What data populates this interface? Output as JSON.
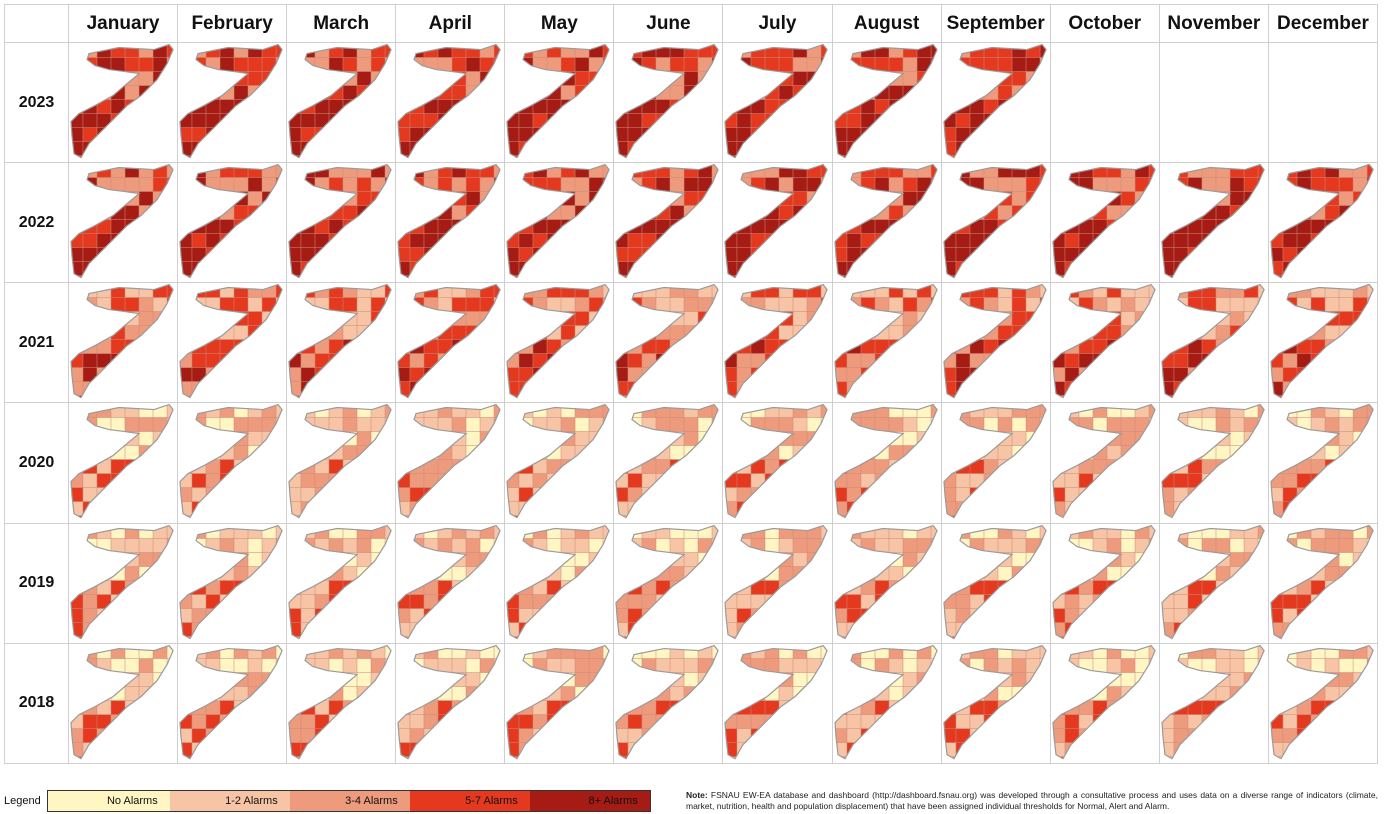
{
  "months": [
    "January",
    "February",
    "March",
    "April",
    "May",
    "June",
    "July",
    "August",
    "September",
    "October",
    "November",
    "December"
  ],
  "years": [
    {
      "label": "2023",
      "months_shown": 9
    },
    {
      "label": "2022",
      "months_shown": 12
    },
    {
      "label": "2021",
      "months_shown": 12
    },
    {
      "label": "2020",
      "months_shown": 12
    },
    {
      "label": "2019",
      "months_shown": 12
    },
    {
      "label": "2018",
      "months_shown": 12
    }
  ],
  "legend": {
    "title": "Legend",
    "items": [
      {
        "label": "No Alarms",
        "color": "#fff6c4"
      },
      {
        "label": "1-2 Alarms",
        "color": "#f8c4a6"
      },
      {
        "label": "3-4 Alarms",
        "color": "#ee9a7c"
      },
      {
        "label": "5-7 Alarms",
        "color": "#e4391e"
      },
      {
        "label": "8+ Alarms",
        "color": "#a61c14"
      }
    ]
  },
  "note": {
    "label": "Note:",
    "text": "FSNAU EW-EA database and dashboard (http://dashboard.fsnau.org) was developed through a consultative process and uses data on a diverse range of indicators (climate, market, nutrition, health and population displacement) that have been assigned individual thresholds for Normal, Alert and Alarm."
  }
}
